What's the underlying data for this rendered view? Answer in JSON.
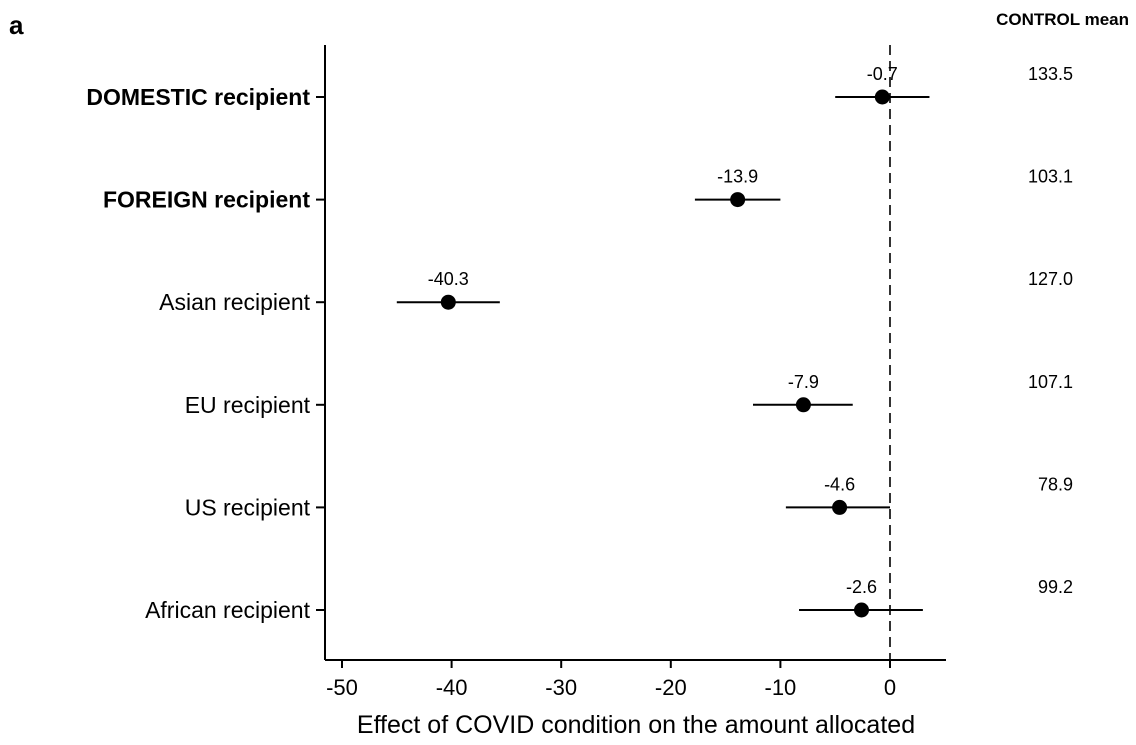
{
  "panel_label": "a",
  "control_header": {
    "bold_part": "CONTROL",
    "rest": " mean"
  },
  "chart_data": {
    "type": "forest",
    "xlabel": "Effect of COVID condition on the amount allocated",
    "xlim": [
      -51.5,
      5
    ],
    "xticks": [
      -50,
      -40,
      -30,
      -20,
      -10,
      0
    ],
    "reference_line": 0,
    "rows": [
      {
        "label": "DOMESTIC recipient",
        "bold": true,
        "estimate": -0.7,
        "estimate_label": "-0.7",
        "ci": [
          -5.0,
          3.6
        ],
        "control_mean": "133.5"
      },
      {
        "label": "FOREIGN recipient",
        "bold": true,
        "estimate": -13.9,
        "estimate_label": "-13.9",
        "ci": [
          -17.8,
          -10.0
        ],
        "control_mean": "103.1"
      },
      {
        "label": "Asian recipient",
        "bold": false,
        "estimate": -40.3,
        "estimate_label": "-40.3",
        "ci": [
          -45.0,
          -35.6
        ],
        "control_mean": "127.0"
      },
      {
        "label": "EU recipient",
        "bold": false,
        "estimate": -7.9,
        "estimate_label": "-7.9",
        "ci": [
          -12.5,
          -3.4
        ],
        "control_mean": "107.1"
      },
      {
        "label": "US recipient",
        "bold": false,
        "estimate": -4.6,
        "estimate_label": "-4.6",
        "ci": [
          -9.5,
          0.0
        ],
        "control_mean": "78.9"
      },
      {
        "label": "African recipient",
        "bold": false,
        "estimate": -2.6,
        "estimate_label": "-2.6",
        "ci": [
          -8.3,
          3.0
        ],
        "control_mean": "99.2"
      }
    ]
  }
}
